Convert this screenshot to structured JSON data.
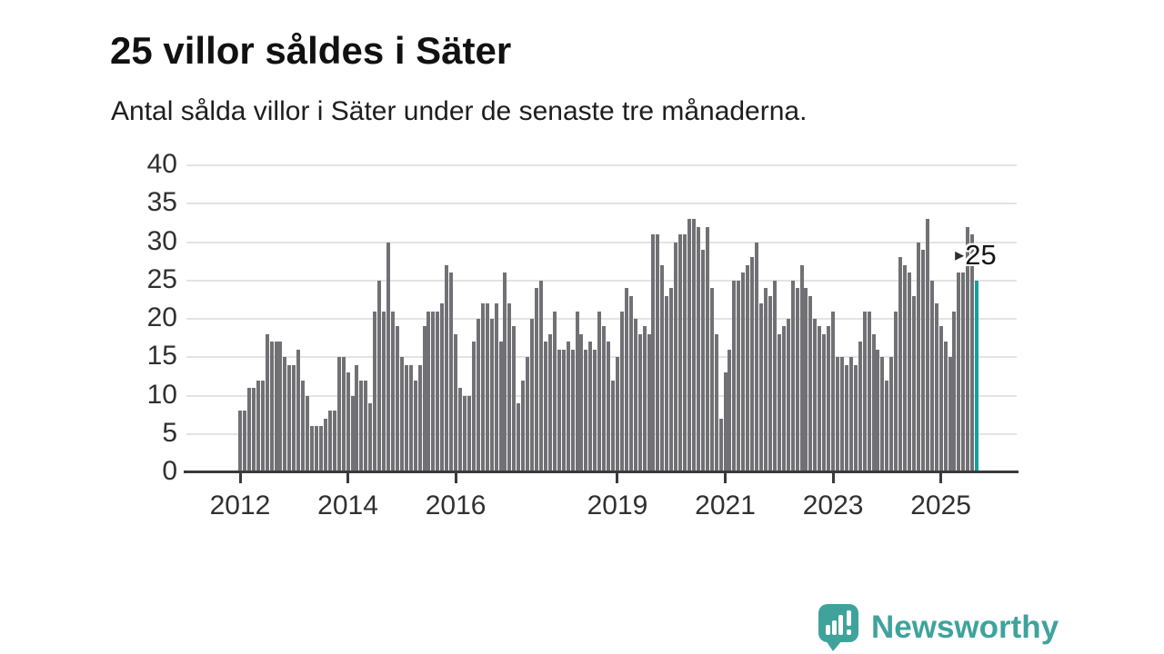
{
  "title": "25 villor såldes i Säter",
  "subtitle": "Antal sålda villor i Säter under de senaste tre månaderna.",
  "annotation": {
    "marker": "▸",
    "label": "25"
  },
  "branding": {
    "name": "Newsworthy",
    "icon": "newsworthy-speech-bubble-chart-icon"
  },
  "colors": {
    "bar": "#717175",
    "highlight": "#12a19b",
    "brand_teal": "#3fa39c",
    "grid": "#e3e3e3",
    "axis": "#3a3a3a",
    "text": "#1e1e1e"
  },
  "chart_data": {
    "type": "bar",
    "title": "25 villor såldes i Säter",
    "subtitle": "Antal sålda villor i Säter under de senaste tre månaderna.",
    "x_unit": "month",
    "x_start": "2012-01",
    "x_end": "2025-09",
    "ylim": [
      0,
      40
    ],
    "y_ticks": [
      0,
      5,
      10,
      15,
      20,
      25,
      30,
      35,
      40
    ],
    "grid": "horizontal",
    "x_tick_labels": [
      "2012",
      "2014",
      "2016",
      "2019",
      "2021",
      "2023",
      "2025"
    ],
    "x_tick_month_index": [
      0,
      24,
      48,
      84,
      108,
      132,
      156
    ],
    "highlight_last_bar": true,
    "last_value_label": "25",
    "values": [
      8,
      8,
      11,
      11,
      12,
      12,
      18,
      17,
      17,
      17,
      15,
      14,
      14,
      16,
      12,
      10,
      6,
      6,
      6,
      7,
      8,
      8,
      15,
      15,
      13,
      10,
      14,
      12,
      12,
      9,
      21,
      25,
      21,
      30,
      21,
      19,
      15,
      14,
      14,
      12,
      14,
      19,
      21,
      21,
      21,
      22,
      27,
      26,
      18,
      11,
      10,
      10,
      17,
      20,
      22,
      22,
      20,
      22,
      17,
      26,
      22,
      19,
      9,
      12,
      15,
      20,
      24,
      25,
      17,
      18,
      21,
      16,
      16,
      17,
      16,
      21,
      18,
      16,
      17,
      16,
      21,
      19,
      17,
      12,
      15,
      21,
      24,
      23,
      20,
      18,
      19,
      18,
      31,
      31,
      27,
      23,
      24,
      30,
      31,
      31,
      33,
      33,
      32,
      29,
      32,
      24,
      18,
      7,
      13,
      16,
      25,
      25,
      26,
      27,
      28,
      30,
      22,
      24,
      23,
      25,
      18,
      19,
      20,
      25,
      24,
      27,
      24,
      23,
      20,
      19,
      18,
      19,
      21,
      15,
      15,
      14,
      15,
      14,
      17,
      21,
      21,
      18,
      16,
      15,
      12,
      15,
      21,
      28,
      27,
      26,
      23,
      30,
      29,
      33,
      25,
      22,
      19,
      17,
      15,
      21,
      26,
      26,
      32,
      31,
      25
    ]
  }
}
